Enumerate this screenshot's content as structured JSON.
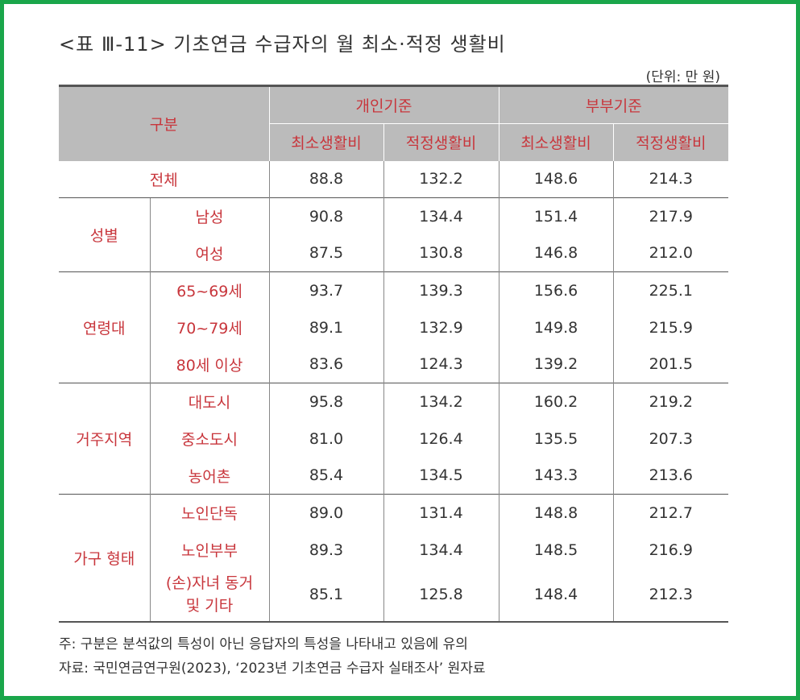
{
  "title": "<표 Ⅲ-11> 기초연금 수급자의 월 최소·적정 생활비",
  "unit": "(단위: 만 원)",
  "header": {
    "category": "구분",
    "individual": "개인기준",
    "couple": "부부기준",
    "min": "최소생활비",
    "adequate": "적정생활비"
  },
  "total": {
    "label": "전체",
    "values": [
      "88.8",
      "132.2",
      "148.6",
      "214.3"
    ]
  },
  "groups": [
    {
      "label": "성별",
      "rows": [
        {
          "label": "남성",
          "values": [
            "90.8",
            "134.4",
            "151.4",
            "217.9"
          ]
        },
        {
          "label": "여성",
          "values": [
            "87.5",
            "130.8",
            "146.8",
            "212.0"
          ]
        }
      ]
    },
    {
      "label": "연령대",
      "rows": [
        {
          "label": "65~69세",
          "values": [
            "93.7",
            "139.3",
            "156.6",
            "225.1"
          ]
        },
        {
          "label": "70~79세",
          "values": [
            "89.1",
            "132.9",
            "149.8",
            "215.9"
          ]
        },
        {
          "label": "80세 이상",
          "values": [
            "83.6",
            "124.3",
            "139.2",
            "201.5"
          ]
        }
      ]
    },
    {
      "label": "거주지역",
      "rows": [
        {
          "label": "대도시",
          "values": [
            "95.8",
            "134.2",
            "160.2",
            "219.2"
          ]
        },
        {
          "label": "중소도시",
          "values": [
            "81.0",
            "126.4",
            "135.5",
            "207.3"
          ]
        },
        {
          "label": "농어촌",
          "values": [
            "85.4",
            "134.5",
            "143.3",
            "213.6"
          ]
        }
      ]
    },
    {
      "label": "가구 형태",
      "rows": [
        {
          "label": "노인단독",
          "values": [
            "89.0",
            "131.4",
            "148.8",
            "212.7"
          ]
        },
        {
          "label": "노인부부",
          "values": [
            "89.3",
            "134.4",
            "148.5",
            "216.9"
          ]
        },
        {
          "label": "(손)자녀 동거 및 기타",
          "values": [
            "85.1",
            "125.8",
            "148.4",
            "212.3"
          ]
        }
      ]
    }
  ],
  "notes": {
    "note": "주: 구분은 분석값의 특성이 아닌 응답자의 특성을 나타내고 있음에 유의",
    "source": "자료: 국민연금연구원(2023), ‘2023년 기초연금 수급자 실태조사’ 원자료"
  },
  "colors": {
    "frame": "#1aa64a",
    "header_bg": "#bbbbbb",
    "label_red": "#c8363c"
  }
}
